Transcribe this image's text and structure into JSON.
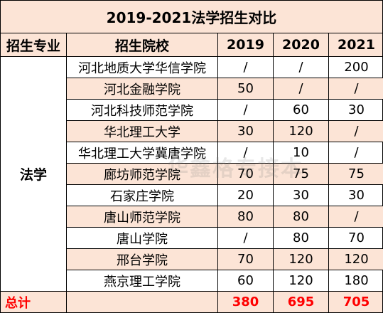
{
  "title": "2019-2021法学招生对比",
  "headers": {
    "major": "招生专业",
    "school": "招生院校",
    "y2019": "2019",
    "y2020": "2020",
    "y2021": "2021"
  },
  "major": "法学",
  "rows": [
    {
      "school": "河北地质大学华信学院",
      "y2019": "/",
      "y2020": "/",
      "y2021": "200"
    },
    {
      "school": "河北金融学院",
      "y2019": "50",
      "y2020": "/",
      "y2021": "/"
    },
    {
      "school": "河北科技师范学院",
      "y2019": "/",
      "y2020": "60",
      "y2021": "30"
    },
    {
      "school": "华北理工大学",
      "y2019": "30",
      "y2020": "120",
      "y2021": "/"
    },
    {
      "school": "华北理工大学冀唐学院",
      "y2019": "/",
      "y2020": "10",
      "y2021": "/"
    },
    {
      "school": "廊坊师范学院",
      "y2019": "70",
      "y2020": "75",
      "y2021": "75"
    },
    {
      "school": "石家庄学院",
      "y2019": "20",
      "y2020": "30",
      "y2021": "30"
    },
    {
      "school": "唐山师范学院",
      "y2019": "80",
      "y2020": "80",
      "y2021": "/"
    },
    {
      "school": "唐山学院",
      "y2019": "/",
      "y2020": "80",
      "y2021": "70"
    },
    {
      "school": "邢台学院",
      "y2019": "70",
      "y2020": "120",
      "y2021": "120"
    },
    {
      "school": "燕京理工学院",
      "y2019": "60",
      "y2020": "120",
      "y2021": "180"
    }
  ],
  "total": {
    "label": "总计",
    "y2019": "380",
    "y2020": "695",
    "y2021": "705"
  },
  "watermark": "华鑫格专接本",
  "colors": {
    "header_bg": "#fce4d6",
    "total_text": "#ff0000"
  }
}
